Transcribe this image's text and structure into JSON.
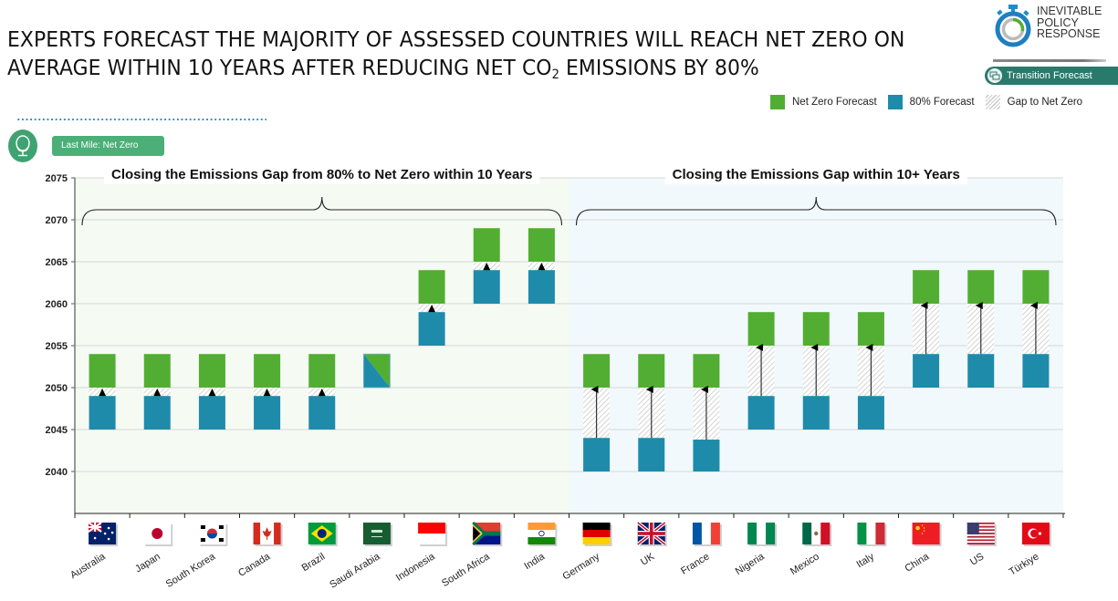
{
  "header": {
    "title_line1": "EXPERTS FORECAST THE MAJORITY OF ASSESSED COUNTRIES WILL REACH NET ZERO ON",
    "title_line2_pre": "AVERAGE WITHIN 10 YEARS AFTER REDUCING NET CO",
    "title_line2_sub": "2",
    "title_line2_post": " EMISSIONS BY 80%"
  },
  "logo": {
    "line1": "INEVITABLE",
    "line2": "POLICY",
    "line3": "RESPONSE",
    "icon": "stopwatch-icon"
  },
  "badges": {
    "transition_forecast": "Transition Forecast",
    "transition_icon": "chat-bubbles-icon",
    "last_mile": "Last Mile: Net Zero",
    "last_mile_icon": "globe-icon"
  },
  "colors": {
    "net_zero": "#52ae32",
    "eighty": "#1e8bab",
    "gap_hatch": "#c8c8c8",
    "zone_left_bg": "#f5faf3",
    "zone_right_bg": "#f2f9fc",
    "badge_teal": "#2a7a6c",
    "badge_green": "#4caf78",
    "dots_blue": "#2a8dc8"
  },
  "chart_data": {
    "type": "bar",
    "subtype": "floating-range",
    "title": "",
    "xlabel": "",
    "ylabel": "",
    "ylim": [
      2035,
      2075
    ],
    "yticks": [
      2040,
      2045,
      2050,
      2055,
      2060,
      2065,
      2070,
      2075
    ],
    "grid": true,
    "legend_position": "top-right",
    "legend": [
      {
        "key": "net_zero",
        "label": "Net Zero Forecast"
      },
      {
        "key": "eighty",
        "label": "80% Forecast"
      },
      {
        "key": "gap",
        "label": "Gap to Net Zero"
      }
    ],
    "zones": [
      {
        "label": "Closing the Emissions Gap from 80% to Net Zero within 10 Years",
        "from_index": 0,
        "to_index": 8
      },
      {
        "label": "Closing the Emissions Gap within 10+ Years",
        "from_index": 9,
        "to_index": 17
      }
    ],
    "categories": [
      "Australia",
      "Japan",
      "South Korea",
      "Canada",
      "Brazil",
      "Saudi Arabia",
      "Indonesia",
      "South Africa",
      "India",
      "Germany",
      "UK",
      "France",
      "Nigeria",
      "Mexico",
      "Italy",
      "China",
      "US",
      "Türkiye"
    ],
    "series": [
      {
        "name": "80% Forecast",
        "ranges": [
          [
            2045,
            2049
          ],
          [
            2045,
            2049
          ],
          [
            2045,
            2049
          ],
          [
            2045,
            2049
          ],
          [
            2045,
            2049
          ],
          [
            2050,
            2054
          ],
          [
            2055,
            2059
          ],
          [
            2060,
            2064
          ],
          [
            2060,
            2064
          ],
          [
            2040,
            2044
          ],
          [
            2040,
            2044
          ],
          [
            2040,
            2043.8
          ],
          [
            2045,
            2049
          ],
          [
            2045,
            2049
          ],
          [
            2045,
            2049
          ],
          [
            2050,
            2054
          ],
          [
            2050,
            2054
          ],
          [
            2050,
            2054
          ]
        ]
      },
      {
        "name": "Gap to Net Zero",
        "ranges": [
          [
            2049,
            2050
          ],
          [
            2049,
            2050
          ],
          [
            2049,
            2050
          ],
          [
            2049,
            2050
          ],
          [
            2049,
            2050
          ],
          null,
          [
            2059,
            2060
          ],
          [
            2064,
            2065
          ],
          [
            2064,
            2065
          ],
          [
            2044,
            2050
          ],
          [
            2044,
            2050
          ],
          [
            2043.8,
            2050
          ],
          [
            2049,
            2055
          ],
          [
            2049,
            2055
          ],
          [
            2049,
            2055
          ],
          [
            2054,
            2060
          ],
          [
            2054,
            2060
          ],
          [
            2054,
            2060
          ]
        ]
      },
      {
        "name": "Net Zero Forecast",
        "ranges": [
          [
            2050,
            2054
          ],
          [
            2050,
            2054
          ],
          [
            2050,
            2054
          ],
          [
            2050,
            2054
          ],
          [
            2050,
            2054
          ],
          [
            2050,
            2054
          ],
          [
            2060,
            2064
          ],
          [
            2065,
            2069
          ],
          [
            2065,
            2069
          ],
          [
            2050,
            2054
          ],
          [
            2050,
            2054
          ],
          [
            2050,
            2054
          ],
          [
            2055,
            2059
          ],
          [
            2055,
            2059
          ],
          [
            2055,
            2059
          ],
          [
            2060,
            2064
          ],
          [
            2060,
            2064
          ],
          [
            2060,
            2064
          ]
        ]
      }
    ],
    "notes": {
      "Saudi Arabia": "80% and Net Zero forecasts coincide (2050-2054), shown as diagonally split box"
    },
    "flags": [
      "australia-flag",
      "japan-flag",
      "south-korea-flag",
      "canada-flag",
      "brazil-flag",
      "saudi-arabia-flag",
      "indonesia-flag",
      "south-africa-flag",
      "india-flag",
      "germany-flag",
      "uk-flag",
      "france-flag",
      "nigeria-flag",
      "mexico-flag",
      "italy-flag",
      "china-flag",
      "us-flag",
      "turkiye-flag"
    ]
  }
}
